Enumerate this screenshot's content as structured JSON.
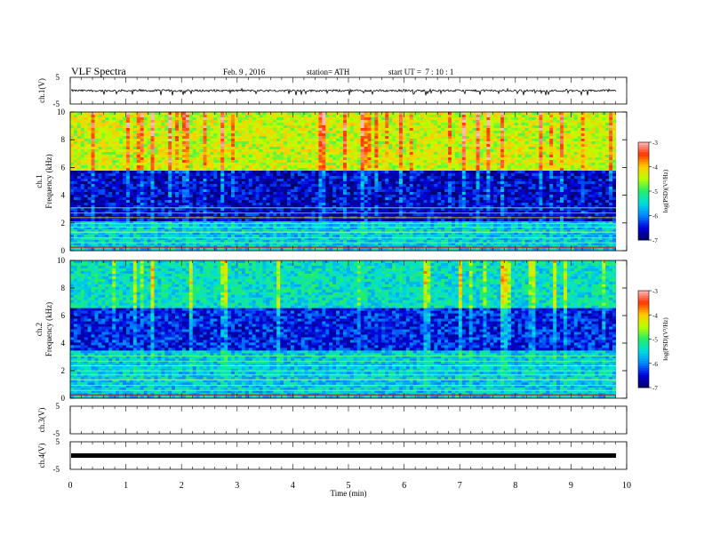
{
  "header": {
    "title": "VLF Spectra",
    "date": "Feb. 9 , 2016",
    "station": "station= ATH",
    "start": "start UT =  7 : 10 : 1"
  },
  "colors": {
    "spectrogram_scale": [
      "#000066",
      "#0000dd",
      "#0088ff",
      "#00dddd",
      "#22ee66",
      "#bbff00",
      "#ffcc00",
      "#ff3300",
      "#ffbbbb"
    ],
    "trace": "#000000"
  },
  "chart_data": [
    {
      "type": "line",
      "name": "ch1-waveform",
      "ylabel": "ch.1(V)",
      "ylim": [
        -5,
        5
      ],
      "y_ticks": [
        "5",
        "-5"
      ],
      "baseline": 0,
      "amplitude_range": [
        -1.8,
        0.8
      ]
    },
    {
      "type": "heatmap",
      "name": "ch1-spectrogram",
      "ylabel": "ch.1",
      "ylabel2": "Frequency  (kHz)",
      "ylim": [
        0,
        10
      ],
      "y_ticks": [
        "0",
        "2",
        "4",
        "6",
        "8",
        "10"
      ],
      "colorbar": {
        "label": "log(PSD)(V²/Hz)",
        "range": [
          -7,
          -3
        ],
        "ticks": [
          "-3",
          "-4",
          "-5",
          "-6",
          "-7"
        ]
      },
      "bands": [
        {
          "from": 5.8,
          "to": 10,
          "level": -4.4
        },
        {
          "from": 2.2,
          "to": 5.8,
          "level": -6.6
        },
        {
          "from": 0,
          "to": 2.2,
          "level": -5.6
        }
      ]
    },
    {
      "type": "heatmap",
      "name": "ch2-spectrogram",
      "ylabel": "ch.2",
      "ylabel2": "Frequency  (kHz)",
      "ylim": [
        0,
        10
      ],
      "y_ticks": [
        "0",
        "2",
        "4",
        "6",
        "8",
        "10"
      ],
      "colorbar": {
        "label": "log(PSD)(V²/Hz)",
        "range": [
          -7,
          -3
        ],
        "ticks": [
          "-3",
          "-4",
          "-5",
          "-6",
          "-7"
        ]
      },
      "bands": [
        {
          "from": 6.5,
          "to": 10,
          "level": -5.4
        },
        {
          "from": 3.5,
          "to": 6.5,
          "level": -6.4
        },
        {
          "from": 0,
          "to": 3.5,
          "level": -5.6
        }
      ]
    },
    {
      "type": "line",
      "name": "ch3-waveform",
      "ylabel": "ch.3(V)",
      "ylim": [
        -5,
        5
      ],
      "y_ticks": [
        "5",
        "-5"
      ]
    },
    {
      "type": "line",
      "name": "ch4-waveform",
      "ylabel": "ch.4(V)",
      "ylim": [
        -5,
        5
      ],
      "y_ticks": [
        "5",
        "-5"
      ],
      "baseline": 0
    }
  ],
  "x_axis": {
    "label": "Time  (min)",
    "range": [
      0,
      10
    ],
    "data_end": 9.8,
    "ticks": [
      "0",
      "1",
      "2",
      "3",
      "4",
      "5",
      "6",
      "7",
      "8",
      "9",
      "10"
    ]
  }
}
